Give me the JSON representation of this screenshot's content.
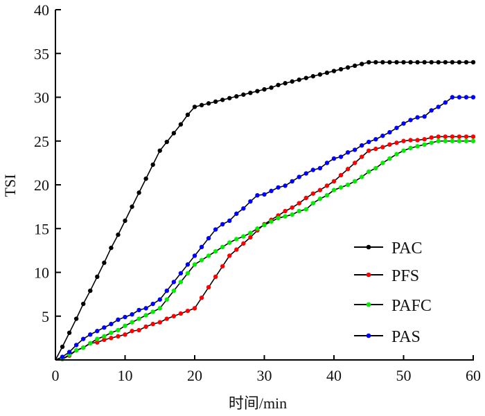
{
  "chart_data": {
    "type": "line",
    "title": "",
    "xlabel": "时间/min",
    "ylabel": "TSI",
    "xlim": [
      0,
      60
    ],
    "ylim": [
      0,
      40
    ],
    "xticks": [
      0,
      10,
      20,
      30,
      40,
      50,
      60
    ],
    "yticks": [
      5,
      10,
      15,
      20,
      25,
      30,
      35,
      40
    ],
    "xtick_labels": [
      "0",
      "10",
      "20",
      "30",
      "40",
      "50",
      "60"
    ],
    "ytick_labels": [
      "5",
      "10",
      "15",
      "20",
      "25",
      "30",
      "35",
      "40"
    ],
    "grid": false,
    "legend_position": "bottom-right",
    "x": [
      0,
      1,
      2,
      3,
      4,
      5,
      6,
      7,
      8,
      9,
      10,
      11,
      12,
      13,
      14,
      15,
      16,
      17,
      18,
      19,
      20,
      21,
      22,
      23,
      24,
      25,
      26,
      27,
      28,
      29,
      30,
      31,
      32,
      33,
      34,
      35,
      36,
      37,
      38,
      39,
      40,
      41,
      42,
      43,
      44,
      45,
      46,
      47,
      48,
      49,
      50,
      51,
      52,
      53,
      54,
      55,
      56,
      57,
      58,
      59,
      60
    ],
    "series": [
      {
        "name": "PAC",
        "color": "#000000",
        "values": [
          0,
          1.5,
          3.1,
          4.7,
          6.4,
          7.9,
          9.5,
          11.1,
          12.8,
          14.3,
          15.9,
          17.5,
          19.1,
          20.7,
          22.3,
          23.9,
          24.9,
          25.9,
          26.9,
          28.0,
          28.9,
          29.1,
          29.3,
          29.5,
          29.7,
          29.9,
          30.1,
          30.3,
          30.5,
          30.7,
          30.9,
          31.1,
          31.4,
          31.6,
          31.8,
          32.0,
          32.2,
          32.4,
          32.6,
          32.8,
          33.0,
          33.2,
          33.4,
          33.6,
          33.8,
          34.0,
          34.0,
          34.0,
          34.0,
          34.0,
          34.0,
          34.0,
          34.0,
          34.0,
          34.0,
          34.0,
          34.0,
          34.0,
          34.0,
          34.0,
          34.0
        ]
      },
      {
        "name": "PFS",
        "color": "#ff0000",
        "values": [
          0,
          0.1,
          0.5,
          1.1,
          1.4,
          1.9,
          2.0,
          2.3,
          2.5,
          2.7,
          2.9,
          3.3,
          3.4,
          3.8,
          4.1,
          4.3,
          4.7,
          5.0,
          5.3,
          5.6,
          5.9,
          7.1,
          8.3,
          9.5,
          10.7,
          11.9,
          12.6,
          13.3,
          14.0,
          14.8,
          15.5,
          16.0,
          16.5,
          17.0,
          17.4,
          17.9,
          18.5,
          19.0,
          19.4,
          19.9,
          20.4,
          21.1,
          21.8,
          22.5,
          23.2,
          23.9,
          24.1,
          24.3,
          24.6,
          24.8,
          25.0,
          25.1,
          25.1,
          25.2,
          25.4,
          25.5,
          25.5,
          25.5,
          25.5,
          25.5,
          25.5
        ]
      },
      {
        "name": "PAFC",
        "color": "#00ee00",
        "values": [
          0,
          0.1,
          0.6,
          1.1,
          1.4,
          1.9,
          2.4,
          2.7,
          3.1,
          3.4,
          3.9,
          4.3,
          4.7,
          5.1,
          5.5,
          5.9,
          6.9,
          7.9,
          8.9,
          9.9,
          10.9,
          11.4,
          11.9,
          12.4,
          12.9,
          13.4,
          13.8,
          14.1,
          14.5,
          15.0,
          15.4,
          15.8,
          16.2,
          16.4,
          16.6,
          17.0,
          17.2,
          17.9,
          18.4,
          18.8,
          19.4,
          19.7,
          20.0,
          20.4,
          20.9,
          21.5,
          21.9,
          22.5,
          23.0,
          23.5,
          23.9,
          24.2,
          24.4,
          24.6,
          24.8,
          25.0,
          25.0,
          25.0,
          25.0,
          25.0,
          25.0
        ]
      },
      {
        "name": "PAS",
        "color": "#0000ff",
        "values": [
          0,
          0.35,
          0.9,
          1.7,
          2.4,
          2.9,
          3.3,
          3.7,
          4.1,
          4.6,
          4.9,
          5.2,
          5.7,
          5.9,
          6.4,
          6.9,
          7.9,
          8.9,
          9.9,
          10.9,
          11.9,
          12.9,
          13.9,
          14.9,
          15.5,
          15.9,
          16.7,
          17.3,
          18.1,
          18.8,
          18.9,
          19.3,
          19.7,
          19.9,
          20.4,
          20.9,
          21.3,
          21.7,
          21.9,
          22.5,
          23.0,
          23.2,
          23.7,
          24.0,
          24.5,
          24.9,
          25.2,
          25.6,
          26.0,
          26.5,
          27.0,
          27.4,
          27.7,
          27.8,
          28.5,
          28.9,
          29.4,
          30.0,
          30.0,
          30.0,
          30.0
        ]
      }
    ]
  }
}
